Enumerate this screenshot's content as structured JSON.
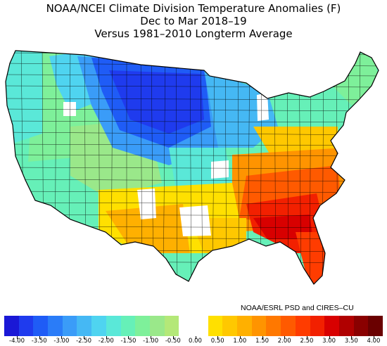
{
  "title": {
    "line1": "NOAA/NCEI Climate Division Temperature Anomalies (F)",
    "line2": "Dec to Mar 2018–19",
    "line3": "Versus 1981–2010 Longterm Average"
  },
  "credit": "NOAA/ESRL PSD and CIRES–CU",
  "colors": {
    "ocean": "#ffffff",
    "border": "#000000",
    "neutral": "#ffffff",
    "scale": [
      "#1a18d6",
      "#1f3bee",
      "#1f5cf6",
      "#2a7cf8",
      "#3a9cf8",
      "#45b8f4",
      "#4fd4f0",
      "#5ae8d8",
      "#66f0b8",
      "#7ef09a",
      "#9ae88a",
      "#b4e878",
      "#ffffff",
      "#ffffff",
      "#ffe000",
      "#ffc800",
      "#ffb000",
      "#ff9400",
      "#ff7800",
      "#ff5a00",
      "#ff3c00",
      "#f22000",
      "#d80000",
      "#b00000",
      "#8a0000",
      "#6a0000"
    ]
  },
  "legend": {
    "ticks": [
      "-4.00",
      "-3.50",
      "-3.00",
      "-2.50",
      "-2.00",
      "-1.50",
      "-1.00",
      "-0.50",
      "0.00",
      "0.50",
      "1.00",
      "1.50",
      "2.00",
      "2.50",
      "3.00",
      "3.50",
      "4.00"
    ]
  },
  "regions": {
    "northern_plains": "-4.00 to -3.00",
    "upper_midwest_west": "-3.00 to -2.00",
    "pacific_northwest_rockies": "-1.00 to -0.50",
    "southwest": "-0.50 to 0.00",
    "texas": "0.50 to 1.50",
    "mid_atlantic_appalachians": "2.00 to 2.50",
    "southeast_georgia_carolinas": "3.00 to 3.50",
    "florida": "3.00 to 3.50",
    "new_england": "-1.00 to 0.50",
    "great_lakes_ohio_valley": "-0.50 to 0.50"
  }
}
